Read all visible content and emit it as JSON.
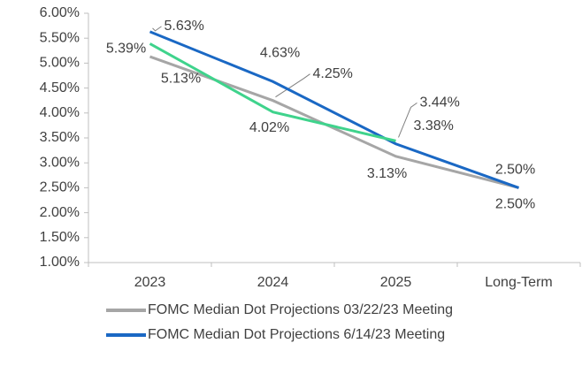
{
  "chart_data": {
    "type": "line",
    "categories": [
      "2023",
      "2024",
      "2025",
      "Long-Term"
    ],
    "series": [
      {
        "name": "FOMC Median Dot Projections 03/22/23 Meeting",
        "color": "#a6a6a6",
        "values": [
          5.13,
          4.25,
          3.13,
          2.5
        ],
        "value_labels": [
          "5.13%",
          "4.25%",
          "3.13%",
          "2.50%"
        ]
      },
      {
        "name": "FOMC Median Dot Projections 6/14/23 Meeting",
        "color": "#1a68c4",
        "values": [
          5.63,
          4.63,
          3.38,
          2.5
        ],
        "value_labels": [
          "5.63%",
          "4.63%",
          "3.38%",
          "2.50%"
        ]
      },
      {
        "color": "#3fd38c",
        "values": [
          5.39,
          4.02,
          3.44,
          null
        ],
        "value_labels": [
          "5.39%",
          "4.02%",
          "3.44%",
          null
        ]
      }
    ],
    "ylim": [
      1,
      6
    ],
    "yticks": [
      {
        "value": 1,
        "label": "1.00%"
      },
      {
        "value": 1.5,
        "label": "1.50%"
      },
      {
        "value": 2,
        "label": "2.00%"
      },
      {
        "value": 2.5,
        "label": "2.50%"
      },
      {
        "value": 3,
        "label": "3.00%"
      },
      {
        "value": 3.5,
        "label": "3.50%"
      },
      {
        "value": 4,
        "label": "4.00%"
      },
      {
        "value": 4.5,
        "label": "4.50%"
      },
      {
        "value": 5,
        "label": "5.00%"
      },
      {
        "value": 5.5,
        "label": "5.50%"
      },
      {
        "value": 6,
        "label": "6.00%"
      }
    ],
    "grid": false
  }
}
